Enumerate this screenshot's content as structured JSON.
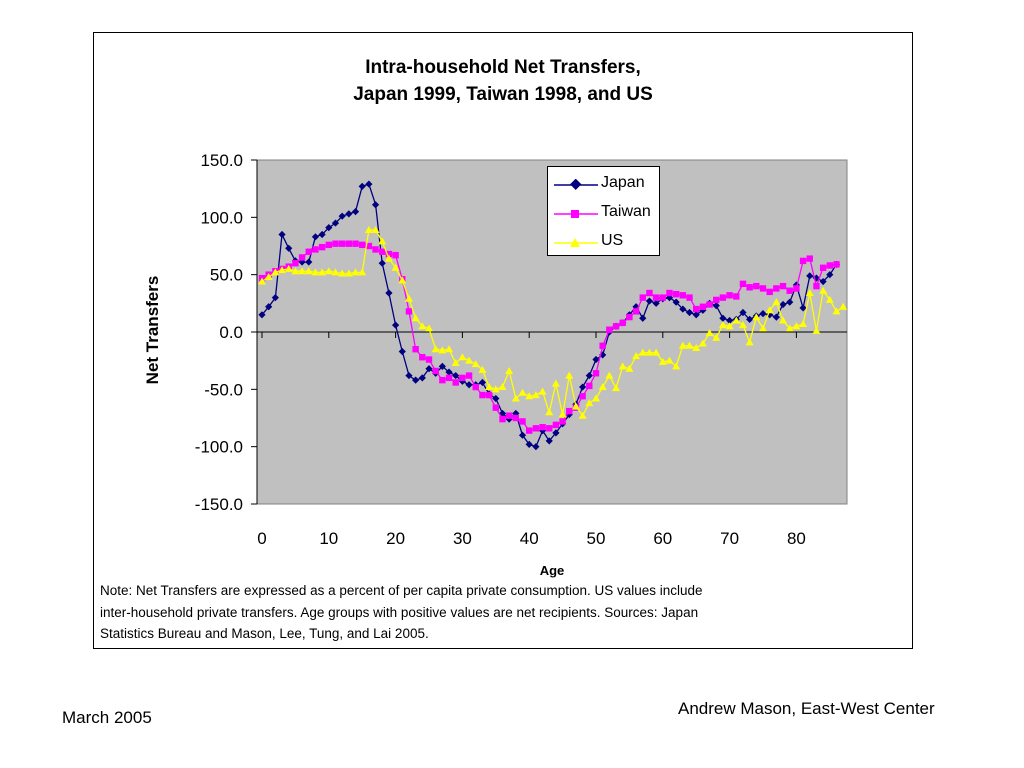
{
  "chart_data": {
    "type": "line",
    "title_line1": "Intra-household Net Transfers,",
    "title_line2": "Japan 1999, Taiwan 1998, and US",
    "xlabel": "Age",
    "ylabel": "Net Transfers",
    "xlim": [
      0,
      88
    ],
    "ylim": [
      -150,
      150
    ],
    "x_ticks": [
      "0",
      "10",
      "20",
      "30",
      "40",
      "50",
      "60",
      "70",
      "80"
    ],
    "y_ticks": [
      "150.0",
      "100.0",
      "50.0",
      "0.0",
      "-50.0",
      "-100.0",
      "-150.0"
    ],
    "plot_background": "#c0c0c0",
    "grid": false,
    "legend_position": "top-right",
    "series": [
      {
        "name": "Japan",
        "color": "#000080",
        "marker": "diamond",
        "values": [
          15,
          22,
          30,
          85,
          73,
          62,
          61,
          61,
          83,
          85,
          91,
          95,
          101,
          103,
          105,
          127,
          129,
          111,
          60,
          34,
          6,
          -17,
          -38,
          -42,
          -40,
          -32,
          -36,
          -30,
          -35,
          -38,
          -43,
          -46,
          -46,
          -44,
          -54,
          -58,
          -71,
          -76,
          -71,
          -90,
          -98,
          -100,
          -86,
          -95,
          -88,
          -80,
          -72,
          -63,
          -48,
          -38,
          -24,
          -20,
          0,
          5,
          8,
          15,
          22,
          12,
          27,
          25,
          29,
          30,
          26,
          20,
          17,
          15,
          19,
          25,
          23,
          12,
          10,
          11,
          17,
          11,
          14,
          16,
          15,
          13,
          24,
          26,
          41,
          21,
          49,
          47,
          44,
          50,
          59
        ]
      },
      {
        "name": "Taiwan",
        "color": "#ff00ff",
        "marker": "square",
        "values": [
          47,
          50,
          53,
          55,
          57,
          60,
          65,
          70,
          72,
          74,
          76,
          77,
          77,
          77,
          77,
          76,
          75,
          72,
          70,
          68,
          67,
          46,
          18,
          -15,
          -22,
          -24,
          -34,
          -42,
          -40,
          -44,
          -40,
          -38,
          -48,
          -55,
          -55,
          -66,
          -76,
          -73,
          -75,
          -78,
          -86,
          -84,
          -83,
          -84,
          -81,
          -78,
          -69,
          -66,
          -56,
          -47,
          -36,
          -12,
          2,
          5,
          8,
          13,
          18,
          30,
          34,
          30,
          30,
          34,
          33,
          32,
          30,
          20,
          22,
          24,
          28,
          30,
          32,
          31,
          42,
          39,
          40,
          38,
          35,
          38,
          40,
          36,
          38,
          62,
          64,
          40,
          56,
          58,
          59
        ]
      },
      {
        "name": "US",
        "color": "#ffff00",
        "marker": "triangle",
        "values": [
          44,
          48,
          52,
          54,
          55,
          53,
          53,
          53,
          52,
          52,
          53,
          52,
          51,
          51,
          52,
          52,
          89,
          89,
          79,
          64,
          56,
          45,
          29,
          12,
          5,
          3,
          -15,
          -16,
          -15,
          -27,
          -22,
          -25,
          -28,
          -33,
          -48,
          -50,
          -48,
          -34,
          -58,
          -53,
          -56,
          -55,
          -52,
          -70,
          -45,
          -72,
          -38,
          -65,
          -73,
          -62,
          -58,
          -48,
          -38,
          -49,
          -30,
          -32,
          -21,
          -18,
          -18,
          -18,
          -26,
          -25,
          -30,
          -12,
          -12,
          -14,
          -10,
          -1,
          -5,
          6,
          5,
          10,
          6,
          -9,
          13,
          3,
          19,
          26,
          10,
          3,
          5,
          7,
          34,
          1,
          36,
          28,
          18,
          22
        ]
      }
    ]
  },
  "note": {
    "line1": "Note:  Net Transfers are expressed as a percent of per capita private consumption.  US values include",
    "line2": "inter-household private  transfers.  Age groups with positive values are net recipients.  Sources:  Japan",
    "line3": "Statistics Bureau and Mason, Lee, Tung, and Lai 2005."
  },
  "footer": {
    "date": "March 2005",
    "author": "Andrew Mason, East-West Center"
  }
}
